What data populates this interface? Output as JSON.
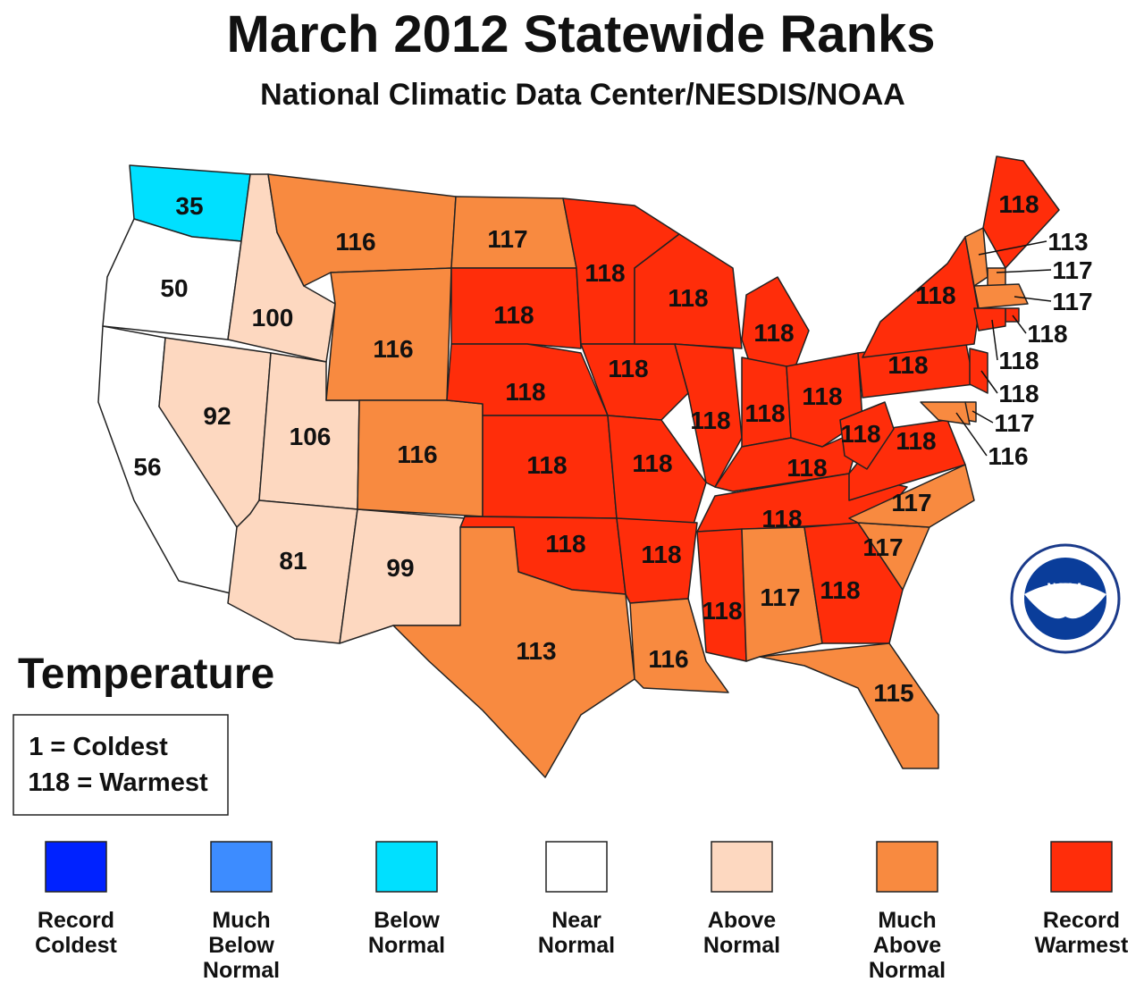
{
  "title": "March 2012 Statewide Ranks",
  "subtitle": "National Climatic Data Center/NESDIS/NOAA",
  "map_label": "Temperature",
  "key": [
    "1 = Coldest",
    "118 = Warmest"
  ],
  "logo_text": "NOAA",
  "states": [
    {
      "rank": 35,
      "color": "#00e0ff"
    },
    {
      "rank": 50,
      "color": "#ffffff"
    },
    {
      "rank": 56,
      "color": "#ffffff"
    },
    {
      "rank": 100,
      "color": "#fdd8c0"
    },
    {
      "rank": 92,
      "color": "#fdd8c0"
    },
    {
      "rank": 106,
      "color": "#fdd8c0"
    },
    {
      "rank": 81,
      "color": "#fdd8c0"
    },
    {
      "rank": 99,
      "color": "#fdd8c0"
    },
    {
      "rank": 116,
      "color": "#f88a40"
    },
    {
      "rank": 116,
      "color": "#f88a40"
    },
    {
      "rank": 116,
      "color": "#f88a40"
    },
    {
      "rank": 117,
      "color": "#f88a40"
    },
    {
      "rank": 118,
      "color": "#ff2d0a"
    },
    {
      "rank": 118,
      "color": "#ff2d0a"
    },
    {
      "rank": 118,
      "color": "#ff2d0a"
    },
    {
      "rank": 118,
      "color": "#ff2d0a"
    },
    {
      "rank": 113,
      "color": "#f88a40"
    },
    {
      "rank": 118,
      "color": "#ff2d0a"
    },
    {
      "rank": 118,
      "color": "#ff2d0a"
    },
    {
      "rank": 118,
      "color": "#ff2d0a"
    },
    {
      "rank": 118,
      "color": "#ff2d0a"
    },
    {
      "rank": 116,
      "color": "#f88a40"
    },
    {
      "rank": 118,
      "color": "#ff2d0a"
    },
    {
      "rank": 118,
      "color": "#ff2d0a"
    },
    {
      "rank": 118,
      "color": "#ff2d0a"
    },
    {
      "rank": 118,
      "color": "#ff2d0a"
    },
    {
      "rank": 118,
      "color": "#ff2d0a"
    },
    {
      "rank": 118,
      "color": "#ff2d0a"
    },
    {
      "rank": 118,
      "color": "#ff2d0a"
    },
    {
      "rank": 118,
      "color": "#ff2d0a"
    },
    {
      "rank": 117,
      "color": "#f88a40"
    },
    {
      "rank": 118,
      "color": "#ff2d0a"
    },
    {
      "rank": 115,
      "color": "#f88a40"
    },
    {
      "rank": 117,
      "color": "#f88a40"
    },
    {
      "rank": 117,
      "color": "#f88a40"
    },
    {
      "rank": 118,
      "color": "#ff2d0a"
    },
    {
      "rank": 118,
      "color": "#ff2d0a"
    },
    {
      "rank": 118,
      "color": "#ff2d0a"
    },
    {
      "rank": 118,
      "color": "#ff2d0a"
    },
    {
      "rank": 113,
      "color": "#f88a40"
    },
    {
      "rank": 118,
      "color": "#ff2d0a"
    },
    {
      "rank": 117,
      "color": "#f88a40"
    },
    {
      "rank": 117,
      "color": "#f88a40"
    },
    {
      "rank": 118,
      "color": "#ff2d0a"
    },
    {
      "rank": 118,
      "color": "#ff2d0a"
    },
    {
      "rank": 118,
      "color": "#ff2d0a"
    },
    {
      "rank": 117,
      "color": "#f88a40"
    },
    {
      "rank": 116,
      "color": "#f88a40"
    }
  ],
  "legend": [
    {
      "label": [
        "Record",
        "Coldest"
      ],
      "color": "#0022ff"
    },
    {
      "label": [
        "Much",
        "Below",
        "Normal"
      ],
      "color": "#3d8cff"
    },
    {
      "label": [
        "Below",
        "Normal"
      ],
      "color": "#00e0ff"
    },
    {
      "label": [
        "Near",
        "Normal"
      ],
      "color": "#ffffff"
    },
    {
      "label": [
        "Above",
        "Normal"
      ],
      "color": "#fdd8c0"
    },
    {
      "label": [
        "Much",
        "Above",
        "Normal"
      ],
      "color": "#f88a40"
    },
    {
      "label": [
        "Record",
        "Warmest"
      ],
      "color": "#ff2d0a"
    }
  ]
}
